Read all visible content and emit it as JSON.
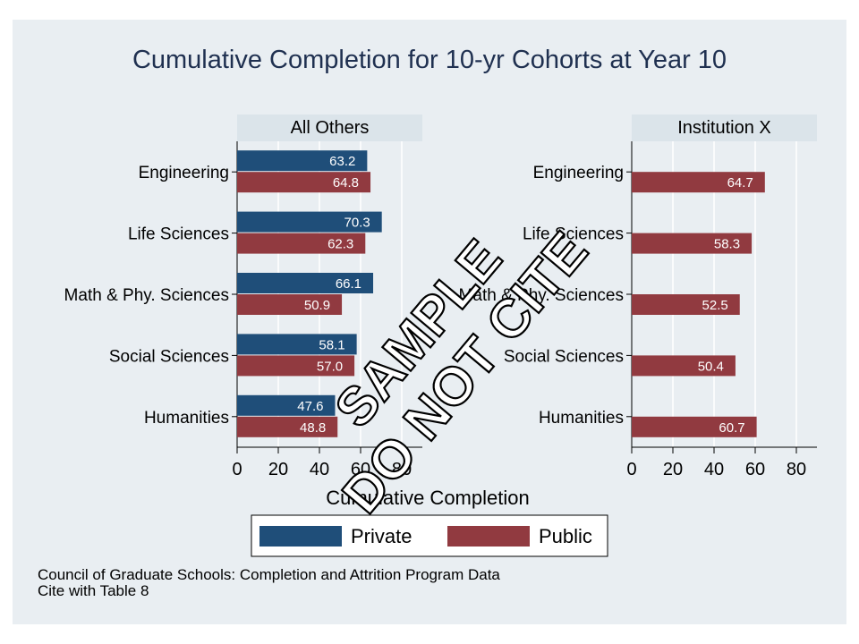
{
  "chart_data": {
    "type": "bar",
    "orientation": "horizontal",
    "title": "Cumulative Completion for 10-yr Cohorts at Year 10",
    "xlabel": "Cumulative Completion",
    "xlim": [
      0,
      90
    ],
    "xticks": [
      0,
      20,
      40,
      60,
      80
    ],
    "grid": true,
    "legend_position": "bottom",
    "categories": [
      "Engineering",
      "Life Sciences",
      "Math & Phy. Sciences",
      "Social Sciences",
      "Humanities"
    ],
    "series_info": [
      {
        "name": "Private",
        "color": "#1f4e79"
      },
      {
        "name": "Public",
        "color": "#913a40"
      }
    ],
    "panels": [
      {
        "title": "All Others",
        "series": [
          {
            "name": "Private",
            "values": [
              63.2,
              70.3,
              66.1,
              58.1,
              47.6
            ],
            "labels": [
              "63.2",
              "70.3",
              "66.1",
              "58.1",
              "47.6"
            ]
          },
          {
            "name": "Public",
            "values": [
              64.8,
              62.3,
              50.9,
              57.0,
              48.8
            ],
            "labels": [
              "64.8",
              "62.3",
              "50.9",
              "57.0",
              "48.8"
            ]
          }
        ]
      },
      {
        "title": "Institution X",
        "series": [
          {
            "name": "Public",
            "values": [
              64.7,
              58.3,
              52.5,
              50.4,
              60.7
            ],
            "labels": [
              "64.7",
              "58.3",
              "52.5",
              "50.4",
              "60.7"
            ]
          }
        ]
      }
    ]
  },
  "source_note": [
    "Council of Graduate Schools: Completion and Attrition Program Data",
    "Cite with Table 8"
  ],
  "watermark": [
    "SAMPLE",
    "DO NOT CITE"
  ],
  "colors": {
    "background": "#e9eef2",
    "panel_strip": "#dbe4ea",
    "grid": "#ffffff",
    "text": "#000000",
    "title": "#1f3050",
    "label_text": "#ffffff"
  }
}
